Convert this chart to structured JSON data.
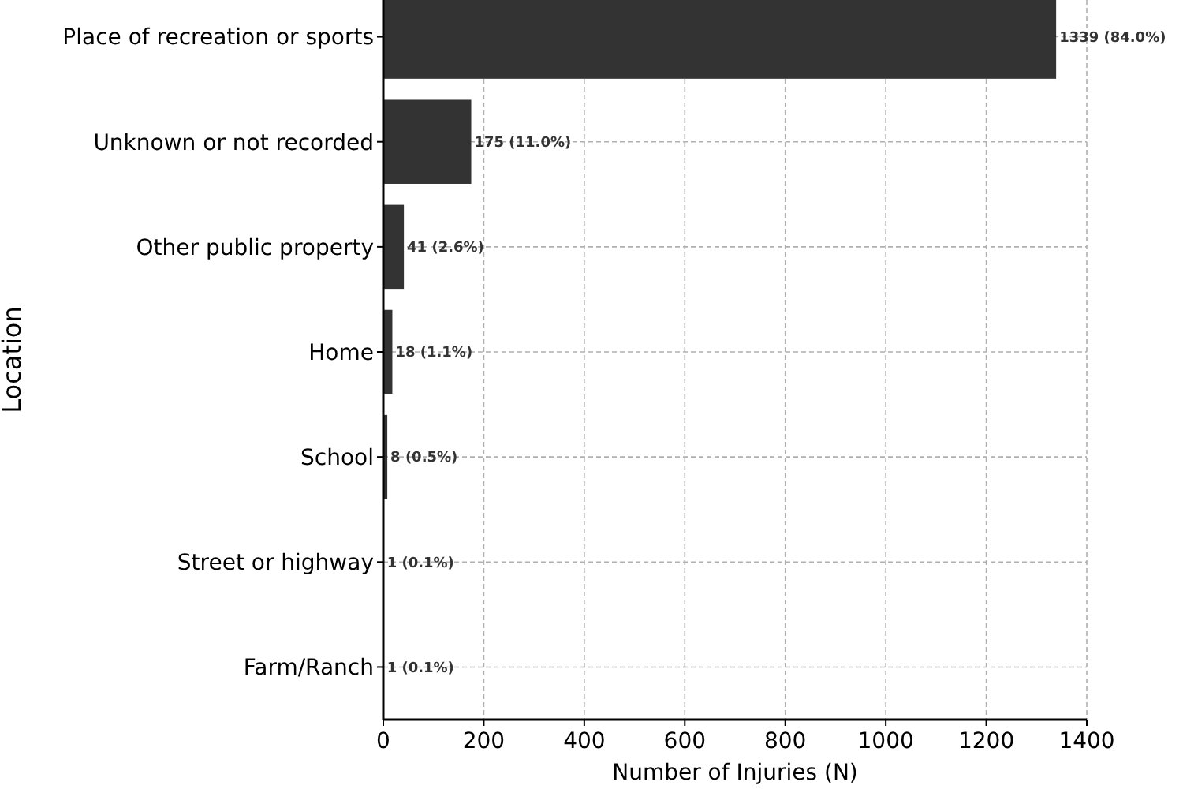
{
  "chart_data": {
    "type": "bar",
    "orientation": "horizontal",
    "xlabel": "Number of Injuries (N)",
    "ylabel": "Location",
    "categories": [
      "Place of recreation or sports",
      "Unknown or not recorded",
      "Other public property",
      "Home",
      "School",
      "Street or highway",
      "Farm/Ranch"
    ],
    "values": [
      1339,
      175,
      41,
      18,
      8,
      1,
      1
    ],
    "value_labels": [
      "1339 (84.0%)",
      "175 (11.0%)",
      "41 (2.6%)",
      "18 (1.1%)",
      "8 (0.5%)",
      "1 (0.1%)",
      "1 (0.1%)"
    ],
    "color": "#333333",
    "xlim": [
      0,
      1400
    ],
    "xticks": [
      0,
      200,
      400,
      600,
      800,
      1000,
      1200,
      1400
    ],
    "grid": true
  }
}
